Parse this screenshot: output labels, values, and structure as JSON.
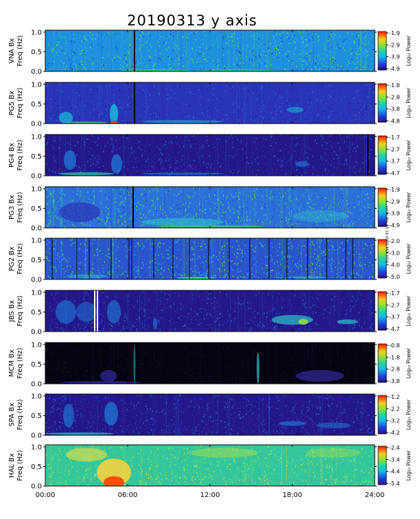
{
  "title": "20190313 y axis",
  "side_note": "sid Fri Mar 15 10:32:25 EST 2019",
  "chart_data": {
    "type": "heatmap",
    "title": "20190313 y axis",
    "x_ticks": [
      "00:00",
      "06:00",
      "12:00",
      "18:00",
      "24:00"
    ],
    "x_tick_values": [
      0,
      6,
      12,
      18,
      24
    ],
    "xlim": [
      0,
      24
    ],
    "y_ticks": [
      "0.0",
      "0.5",
      "1.0"
    ],
    "y_tick_values": [
      0.0,
      0.5,
      1.0
    ],
    "ylim": [
      0,
      1.05
    ],
    "y_label_line2": "Freq (Hz)",
    "colorbar_label": "Log₁₀ Power",
    "panels": [
      {
        "station": "VNA Bx",
        "cbar": [
          "-1.9",
          "-2.9",
          "-3.9",
          "-4.9"
        ],
        "bg": "#1f8fe0",
        "texture": "speckle",
        "vlines": [
          6.5
        ],
        "blobs": [
          [
            8,
            0.03,
            5,
            0.04,
            "#33d07a",
            0.8
          ],
          [
            14,
            0.03,
            6,
            0.04,
            "#33d07a",
            0.6
          ]
        ]
      },
      {
        "station": "PG5 Bx",
        "cbar": [
          "-1.8",
          "-2.8",
          "-3.8",
          "-4.8"
        ],
        "bg": "#2a34b8",
        "texture": "dark",
        "vlines": [
          6.5
        ],
        "blobs": [
          [
            1.5,
            0.15,
            1,
            0.3,
            "#1ab0d8",
            0.8
          ],
          [
            5,
            0.25,
            0.6,
            0.5,
            "#1ab0d8",
            0.9
          ],
          [
            5,
            0.04,
            0.6,
            0.06,
            "#ff3a00",
            1
          ],
          [
            10,
            0.05,
            6,
            0.08,
            "#1ab0d8",
            0.6
          ],
          [
            18.2,
            0.35,
            1.2,
            0.15,
            "#1ab0d8",
            0.6
          ],
          [
            3,
            0.03,
            3,
            0.05,
            "#3be05a",
            0.7
          ]
        ]
      },
      {
        "station": "PG4 Bx",
        "cbar": [
          "-1.7",
          "-2.7",
          "-3.7",
          "-4.7"
        ],
        "bg": "#24178a",
        "texture": "dark",
        "vlines": [
          23.5
        ],
        "blobs": [
          [
            1.8,
            0.4,
            0.9,
            0.5,
            "#1e7fd8",
            0.7
          ],
          [
            5.2,
            0.3,
            0.8,
            0.5,
            "#1e7fd8",
            0.7
          ],
          [
            3,
            0.05,
            4,
            0.08,
            "#2fd0a0",
            0.7
          ],
          [
            10,
            0.05,
            6,
            0.06,
            "#1e7fd8",
            0.6
          ],
          [
            18.7,
            0.3,
            1,
            0.15,
            "#1e7fd8",
            0.6
          ]
        ]
      },
      {
        "station": "PG3 Bx",
        "cbar": [
          "-1.9",
          "-2.9",
          "-3.9",
          "-4.9"
        ],
        "bg": "#2c6fd8",
        "texture": "speckle",
        "vlines": [
          6.4
        ],
        "blobs": [
          [
            2.5,
            0.4,
            3,
            0.5,
            "#2a34b8",
            0.7
          ],
          [
            10,
            0.15,
            6,
            0.2,
            "#2dc3c9",
            0.6
          ],
          [
            12,
            0.04,
            8,
            0.05,
            "#3be05a",
            0.7
          ],
          [
            20,
            0.3,
            4,
            0.3,
            "#2dc3c9",
            0.4
          ]
        ]
      },
      {
        "station": "PG2 Bx",
        "cbar": [
          "-2.0",
          "-3.0",
          "-4.0",
          "-5.0"
        ],
        "bg": "#2a55cc",
        "texture": "speckle",
        "vlines": [
          0.5,
          2.3,
          3.2,
          4.8,
          6.1,
          6.3,
          7.9,
          9.3,
          10.5,
          11.9,
          13.4,
          14.9,
          16.3,
          17.6,
          19.1,
          20.5,
          21.9,
          22.4
        ],
        "blobs": [
          [
            11,
            0.04,
            3,
            0.05,
            "#3be05a",
            0.8
          ],
          [
            19,
            0.05,
            3,
            0.06,
            "#2dc3c9",
            0.6
          ],
          [
            3,
            0.08,
            3,
            0.1,
            "#2dc3c9",
            0.5
          ]
        ]
      },
      {
        "station": "JBS Bx",
        "cbar": [
          "-1.7",
          "-2.7",
          "-3.7",
          "-4.7"
        ],
        "bg": "#24178a",
        "texture": "dark",
        "vlines": [
          3.6,
          3.8
        ],
        "blobs": [
          [
            1.5,
            0.5,
            1.5,
            0.6,
            "#1e7fd8",
            0.6
          ],
          [
            5,
            0.5,
            1,
            0.6,
            "#1e7fd8",
            0.6
          ],
          [
            3,
            0.5,
            1.5,
            0.5,
            "#1e7fd8",
            0.5
          ],
          [
            18,
            0.3,
            3,
            0.25,
            "#2dc3c9",
            0.7
          ],
          [
            18.8,
            0.25,
            0.7,
            0.15,
            "#9fe82a",
            0.8
          ],
          [
            22,
            0.25,
            1.5,
            0.12,
            "#2dc3c9",
            0.7
          ],
          [
            8,
            0.2,
            0.3,
            0.3,
            "#1e7fd8",
            0.6
          ]
        ]
      },
      {
        "station": "MCM Bx",
        "cbar": [
          "-0.8",
          "-1.8",
          "-2.8",
          "-3.8"
        ],
        "bg": "#050410",
        "texture": "black",
        "vlines": [],
        "blobs": [
          [
            4.6,
            0.2,
            1.2,
            0.3,
            "#3a2fb0",
            0.6
          ],
          [
            20,
            0.2,
            3.5,
            0.3,
            "#3a2fb0",
            0.6
          ],
          [
            15.5,
            0.4,
            0.2,
            0.8,
            "#2dc3c9",
            0.7
          ],
          [
            6.5,
            0.5,
            0.15,
            1,
            "#2dc3c9",
            0.5
          ],
          [
            4,
            0.04,
            6,
            0.05,
            "#3a2fb0",
            0.7
          ]
        ]
      },
      {
        "station": "SPA Bx",
        "cbar": [
          "-1.2",
          "-2.2",
          "-3.2",
          "-4.2"
        ],
        "bg": "#24178a",
        "texture": "dark",
        "vlines": [],
        "blobs": [
          [
            1.7,
            0.5,
            0.8,
            0.6,
            "#1e7fd8",
            0.6
          ],
          [
            4.8,
            0.55,
            1,
            0.6,
            "#1e7fd8",
            0.7
          ],
          [
            2.5,
            0.04,
            5,
            0.06,
            "#2dc3c9",
            0.7
          ],
          [
            18,
            0.3,
            2,
            0.12,
            "#1e7fd8",
            0.6
          ],
          [
            21,
            0.25,
            2.5,
            0.15,
            "#1e7fd8",
            0.5
          ]
        ]
      },
      {
        "station": "HAL Bx",
        "cbar": [
          "-2.4",
          "-3.4",
          "-4.4",
          "-5.4"
        ],
        "bg": "#34c79a",
        "texture": "hal",
        "vlines": [],
        "blobs": [
          [
            5,
            0.35,
            2.5,
            0.7,
            "#ffd23a",
            0.85
          ],
          [
            5,
            0.1,
            1.5,
            0.3,
            "#ff3a00",
            0.85
          ],
          [
            3,
            0.8,
            3,
            0.35,
            "#f0e040",
            0.6
          ],
          [
            13,
            0.85,
            5,
            0.25,
            "#a8e04a",
            0.5
          ],
          [
            21,
            0.85,
            4,
            0.25,
            "#a8e04a",
            0.4
          ]
        ]
      }
    ]
  }
}
